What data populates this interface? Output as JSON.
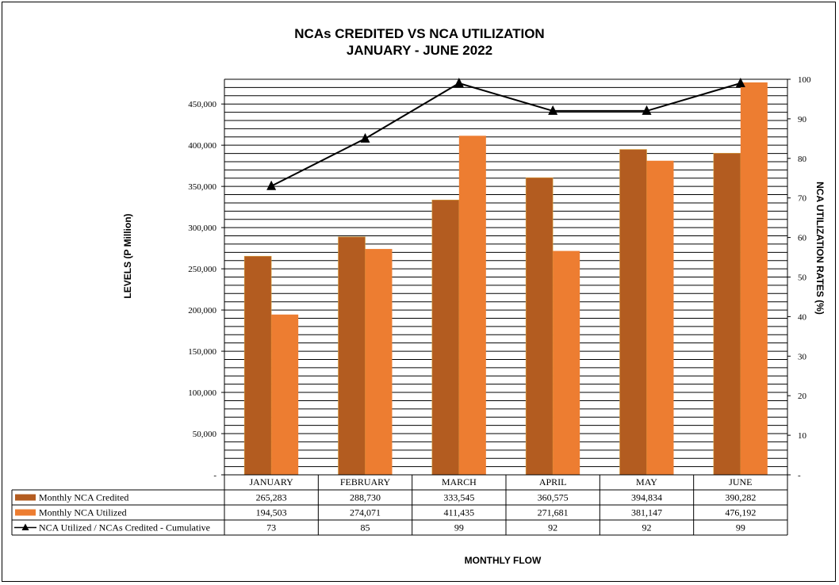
{
  "chart_data": {
    "type": "bar",
    "title_line1": "NCAs CREDITED VS NCA UTILIZATION",
    "title_line2": "JANUARY - JUNE 2022",
    "xlabel": "MONTHLY FLOW",
    "ylabel": "LEVELS (P Million)",
    "y2label": "NCA UTILIZATION RATES (%)",
    "categories": [
      "JANUARY",
      "FEBRUARY",
      "MARCH",
      "APRIL",
      "MAY",
      "JUNE"
    ],
    "ylim": [
      0,
      480000
    ],
    "y2lim": [
      0,
      100
    ],
    "y_ticks": [
      "-",
      "50,000",
      "100,000",
      "150,000",
      "200,000",
      "250,000",
      "300,000",
      "350,000",
      "400,000",
      "450,000"
    ],
    "y2_ticks": [
      "-",
      "10",
      "20",
      "30",
      "40",
      "50",
      "60",
      "70",
      "80",
      "90",
      "100"
    ],
    "series": [
      {
        "name": "Monthly NCA Credited",
        "values": [
          265283,
          288730,
          333545,
          360575,
          394834,
          390282
        ],
        "labels": [
          "265,283",
          "288,730",
          "333,545",
          "360,575",
          "394,834",
          "390,282"
        ],
        "color": "#B35C20"
      },
      {
        "name": "Monthly NCA Utilized",
        "values": [
          194503,
          274071,
          411435,
          271681,
          381147,
          476192
        ],
        "labels": [
          "194,503",
          "274,071",
          "411,435",
          "271,681",
          "381,147",
          "476,192"
        ],
        "color": "#ED7D31"
      },
      {
        "name": "NCA Utilized / NCAs Credited - Cumulative",
        "values": [
          73,
          85,
          99,
          92,
          92,
          99
        ],
        "labels": [
          "73",
          "85",
          "99",
          "92",
          "92",
          "99"
        ],
        "color": "#000000",
        "axis": "secondary"
      }
    ],
    "grid": true,
    "legend": "data-table"
  }
}
